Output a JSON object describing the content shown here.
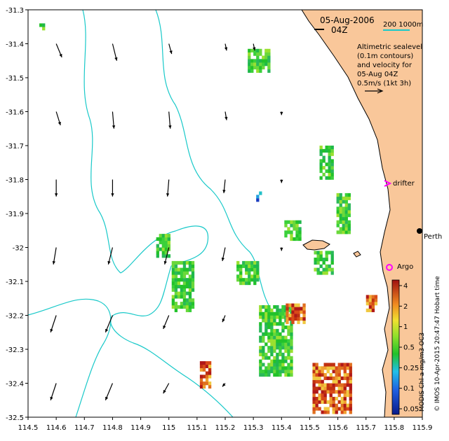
{
  "header": {
    "date": "05-Aug-2006",
    "time": "04Z"
  },
  "scale_bar": {
    "label": "200  1000m",
    "color": "#19c9c9"
  },
  "legend": {
    "lines": [
      "Altimetric sealevel",
      "(0.1m contours)",
      "and velocity for",
      "05-Aug 04Z",
      "0.5m/s (1kt 3h)"
    ]
  },
  "places": {
    "perth": "Perth",
    "drifter": "drifter",
    "argo": "Argo"
  },
  "colorbar": {
    "title": "MODIS Chl-a mg/m3 OC3",
    "ticks": [
      "4",
      "2",
      "1",
      "0.5",
      "0.25",
      "0.1",
      "0.05"
    ]
  },
  "credit": "© IMOS 10-Apr-2015 20:47:47 Hobart time",
  "colors": {
    "land": "#f9c79a",
    "contour": "#19c9c9",
    "drifter": "#ff00ff",
    "argo": "#ff00ff",
    "chl_low": "#1a3bbf",
    "chl_mid": "#22c22a",
    "chl_high": "#b01818"
  },
  "chart_data": {
    "type": "map",
    "x_axis": {
      "range": [
        114.5,
        115.9
      ],
      "ticks": [
        "114.5",
        "114.6",
        "114.7",
        "114.8",
        "114.9",
        "115",
        "115.1",
        "115.2",
        "115.3",
        "115.4",
        "115.5",
        "115.6",
        "115.7",
        "115.8",
        "115.9"
      ]
    },
    "y_axis": {
      "range": [
        -32.5,
        -31.3
      ],
      "ticks": [
        "-31.3",
        "-31.4",
        "-31.5",
        "-31.6",
        "-31.7",
        "-31.8",
        "-31.9",
        "-32",
        "-32.1",
        "-32.2",
        "-32.3",
        "-32.4",
        "-32.5"
      ]
    },
    "velocity_arrows": [
      {
        "lon": 114.6,
        "lat": -31.4,
        "dx": 0.02,
        "dy": -0.04
      },
      {
        "lon": 114.8,
        "lat": -31.4,
        "dx": 0.015,
        "dy": -0.05
      },
      {
        "lon": 115.0,
        "lat": -31.4,
        "dx": 0.01,
        "dy": -0.03
      },
      {
        "lon": 115.2,
        "lat": -31.4,
        "dx": 0.005,
        "dy": -0.02
      },
      {
        "lon": 115.3,
        "lat": -31.4,
        "dx": 0.005,
        "dy": -0.02
      },
      {
        "lon": 114.6,
        "lat": -31.6,
        "dx": 0.015,
        "dy": -0.04
      },
      {
        "lon": 114.8,
        "lat": -31.6,
        "dx": 0.005,
        "dy": -0.05
      },
      {
        "lon": 115.0,
        "lat": -31.6,
        "dx": 0.005,
        "dy": -0.05
      },
      {
        "lon": 115.2,
        "lat": -31.6,
        "dx": 0.005,
        "dy": -0.025
      },
      {
        "lon": 115.4,
        "lat": -31.6,
        "dx": 0.0,
        "dy": -0.01
      },
      {
        "lon": 114.6,
        "lat": -31.8,
        "dx": 0.0,
        "dy": -0.05
      },
      {
        "lon": 114.8,
        "lat": -31.8,
        "dx": 0.0,
        "dy": -0.05
      },
      {
        "lon": 115.0,
        "lat": -31.8,
        "dx": -0.005,
        "dy": -0.05
      },
      {
        "lon": 115.2,
        "lat": -31.8,
        "dx": -0.005,
        "dy": -0.04
      },
      {
        "lon": 115.4,
        "lat": -31.8,
        "dx": 0.0,
        "dy": -0.01
      },
      {
        "lon": 114.6,
        "lat": -32.0,
        "dx": -0.01,
        "dy": -0.05
      },
      {
        "lon": 114.8,
        "lat": -32.0,
        "dx": -0.015,
        "dy": -0.05
      },
      {
        "lon": 115.0,
        "lat": -32.0,
        "dx": -0.015,
        "dy": -0.05
      },
      {
        "lon": 115.2,
        "lat": -32.0,
        "dx": -0.01,
        "dy": -0.04
      },
      {
        "lon": 115.4,
        "lat": -32.0,
        "dx": 0.0,
        "dy": -0.01
      },
      {
        "lon": 114.6,
        "lat": -32.2,
        "dx": -0.02,
        "dy": -0.05
      },
      {
        "lon": 114.8,
        "lat": -32.2,
        "dx": -0.025,
        "dy": -0.05
      },
      {
        "lon": 115.0,
        "lat": -32.2,
        "dx": -0.02,
        "dy": -0.04
      },
      {
        "lon": 115.2,
        "lat": -32.2,
        "dx": -0.01,
        "dy": -0.02
      },
      {
        "lon": 114.6,
        "lat": -32.4,
        "dx": -0.02,
        "dy": -0.05
      },
      {
        "lon": 114.8,
        "lat": -32.4,
        "dx": -0.025,
        "dy": -0.05
      },
      {
        "lon": 115.0,
        "lat": -32.4,
        "dx": -0.02,
        "dy": -0.03
      },
      {
        "lon": 115.2,
        "lat": -32.4,
        "dx": -0.01,
        "dy": -0.01
      }
    ],
    "chl_patches": [
      {
        "lon": 115.32,
        "lat": -31.45,
        "w": 0.08,
        "h": 0.07,
        "level": "mid"
      },
      {
        "lon": 114.55,
        "lat": -31.35,
        "w": 0.02,
        "h": 0.02,
        "level": "mid"
      },
      {
        "lon": 115.05,
        "lat": -32.12,
        "w": 0.08,
        "h": 0.14,
        "level": "mid"
      },
      {
        "lon": 114.98,
        "lat": -32.0,
        "w": 0.05,
        "h": 0.06,
        "level": "mid"
      },
      {
        "lon": 115.28,
        "lat": -32.08,
        "w": 0.08,
        "h": 0.06,
        "level": "mid"
      },
      {
        "lon": 115.44,
        "lat": -31.95,
        "w": 0.06,
        "h": 0.06,
        "level": "mid"
      },
      {
        "lon": 115.56,
        "lat": -31.75,
        "w": 0.05,
        "h": 0.1,
        "level": "mid"
      },
      {
        "lon": 115.62,
        "lat": -31.9,
        "w": 0.05,
        "h": 0.12,
        "level": "mid"
      },
      {
        "lon": 115.55,
        "lat": -32.05,
        "w": 0.07,
        "h": 0.06,
        "level": "mid"
      },
      {
        "lon": 115.38,
        "lat": -32.28,
        "w": 0.12,
        "h": 0.2,
        "level": "mid"
      },
      {
        "lon": 115.45,
        "lat": -32.2,
        "w": 0.07,
        "h": 0.05,
        "level": "high"
      },
      {
        "lon": 115.58,
        "lat": -32.42,
        "w": 0.14,
        "h": 0.14,
        "level": "high"
      },
      {
        "lon": 115.13,
        "lat": -32.38,
        "w": 0.04,
        "h": 0.07,
        "level": "high"
      },
      {
        "lon": 115.72,
        "lat": -32.17,
        "w": 0.04,
        "h": 0.04,
        "level": "high"
      },
      {
        "lon": 115.32,
        "lat": -31.85,
        "w": 0.02,
        "h": 0.03,
        "level": "low"
      }
    ]
  }
}
